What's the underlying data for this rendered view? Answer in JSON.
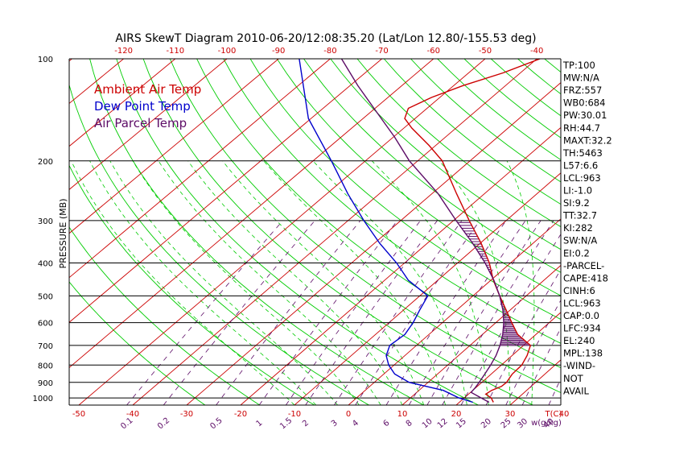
{
  "chart_data": {
    "type": "line",
    "title": "AIRS SkewT Diagram 2010-06-20/12:08:35.20 (Lat/Lon 12.80/-155.53 deg)",
    "ylabel": "PRESSURE (MB)",
    "xlabel": "T(C)",
    "mixing_label": "w(g/kg)",
    "y_scale": "log",
    "ylim": [
      1050,
      100
    ],
    "xlim": [
      -50,
      40
    ],
    "top_axis_reference_pressure": 100,
    "bottom_ticks": [
      -50,
      -40,
      -30,
      -20,
      -10,
      0,
      10,
      20,
      30,
      40
    ],
    "top_ticks": [
      -120,
      -110,
      -100,
      -90,
      -80,
      -70,
      -60,
      -50,
      -40
    ],
    "pressure_ticks": [
      100,
      200,
      300,
      400,
      500,
      600,
      700,
      800,
      900,
      1000
    ],
    "mixing_ratios": [
      "0.1",
      "0.2",
      "0.5",
      "1",
      "1.5",
      "2",
      "3",
      "4",
      "6",
      "8",
      "10",
      "12",
      "15",
      "20",
      "25",
      "30",
      "40"
    ],
    "grid": true,
    "legend_position": "top-left",
    "series": [
      {
        "name": "Ambient Air Temp",
        "color": "#cc0000",
        "points": [
          [
            1030,
            26.3
          ],
          [
            1000,
            25.0
          ],
          [
            975,
            23.2
          ],
          [
            950,
            23.5
          ],
          [
            925,
            24.5
          ],
          [
            900,
            24.6
          ],
          [
            850,
            23.9
          ],
          [
            800,
            23.8
          ],
          [
            750,
            22.8
          ],
          [
            700,
            21.3
          ],
          [
            650,
            16.6
          ],
          [
            600,
            13.0
          ],
          [
            550,
            9.2
          ],
          [
            500,
            5.0
          ],
          [
            450,
            0.5
          ],
          [
            400,
            -4.0
          ],
          [
            350,
            -9.8
          ],
          [
            300,
            -17.0
          ],
          [
            250,
            -25.3
          ],
          [
            200,
            -35.3
          ],
          [
            180,
            -41.3
          ],
          [
            160,
            -48.5
          ],
          [
            150,
            -52.0
          ],
          [
            140,
            -53.6
          ],
          [
            130,
            -51.6
          ],
          [
            120,
            -48.2
          ],
          [
            110,
            -43.3
          ],
          [
            100,
            -39.4
          ]
        ]
      },
      {
        "name": "Dew Point Temp",
        "color": "#0000cc",
        "points": [
          [
            1030,
            22.5
          ],
          [
            1000,
            19.0
          ],
          [
            950,
            14.5
          ],
          [
            900,
            6.5
          ],
          [
            850,
            2.0
          ],
          [
            800,
            -1.0
          ],
          [
            750,
            -3.5
          ],
          [
            700,
            -5.0
          ],
          [
            650,
            -4.5
          ],
          [
            600,
            -5.5
          ],
          [
            550,
            -7.0
          ],
          [
            500,
            -8.5
          ],
          [
            450,
            -15.5
          ],
          [
            400,
            -21.5
          ],
          [
            350,
            -29.0
          ],
          [
            300,
            -37.0
          ],
          [
            250,
            -46.0
          ],
          [
            200,
            -56.5
          ],
          [
            150,
            -70.5
          ],
          [
            120,
            -79.0
          ],
          [
            100,
            -86.0
          ]
        ]
      },
      {
        "name": "Air Parcel Temp",
        "color": "#5c0b66",
        "points": [
          [
            1030,
            25.5
          ],
          [
            963,
            20.1
          ],
          [
            934,
            19.9
          ],
          [
            900,
            19.5
          ],
          [
            850,
            18.8
          ],
          [
            800,
            18.0
          ],
          [
            750,
            17.0
          ],
          [
            700,
            15.6
          ],
          [
            650,
            13.8
          ],
          [
            600,
            11.5
          ],
          [
            550,
            8.6
          ],
          [
            500,
            5.0
          ],
          [
            450,
            0.6
          ],
          [
            400,
            -4.8
          ],
          [
            350,
            -11.4
          ],
          [
            300,
            -19.5
          ],
          [
            250,
            -28.8
          ],
          [
            200,
            -41.6
          ],
          [
            170,
            -49.8
          ],
          [
            140,
            -60.2
          ],
          [
            120,
            -68.5
          ],
          [
            100,
            -77.8
          ]
        ]
      }
    ],
    "parcel_shading_range": [
      700,
      300
    ],
    "indices": [
      "TP:100",
      "MW:N/A",
      "FRZ:557",
      "WB0:684",
      "PW:30.01",
      "RH:44.7",
      "MAXT:32.2",
      "TH:5463",
      "L57:6.6",
      "LCL:963",
      "LI:-1.0",
      "SI:9.2",
      "TT:32.7",
      "KI:282",
      "SW:N/A",
      "EI:0.2",
      "-PARCEL-",
      "CAPE:418",
      "CINH:6",
      "LCL:963",
      "CAP:0.0",
      "LFC:934",
      "EL:240",
      "MPL:138",
      "-WIND-",
      "NOT",
      "AVAIL"
    ],
    "colors": {
      "isotherm": "#cc0000",
      "dry_adiabat": "#00cc00",
      "moist_adiabat": "#00cc00",
      "mixing_ratio": "#5c0b66",
      "isobar": "#000000",
      "text": "#000000"
    }
  }
}
